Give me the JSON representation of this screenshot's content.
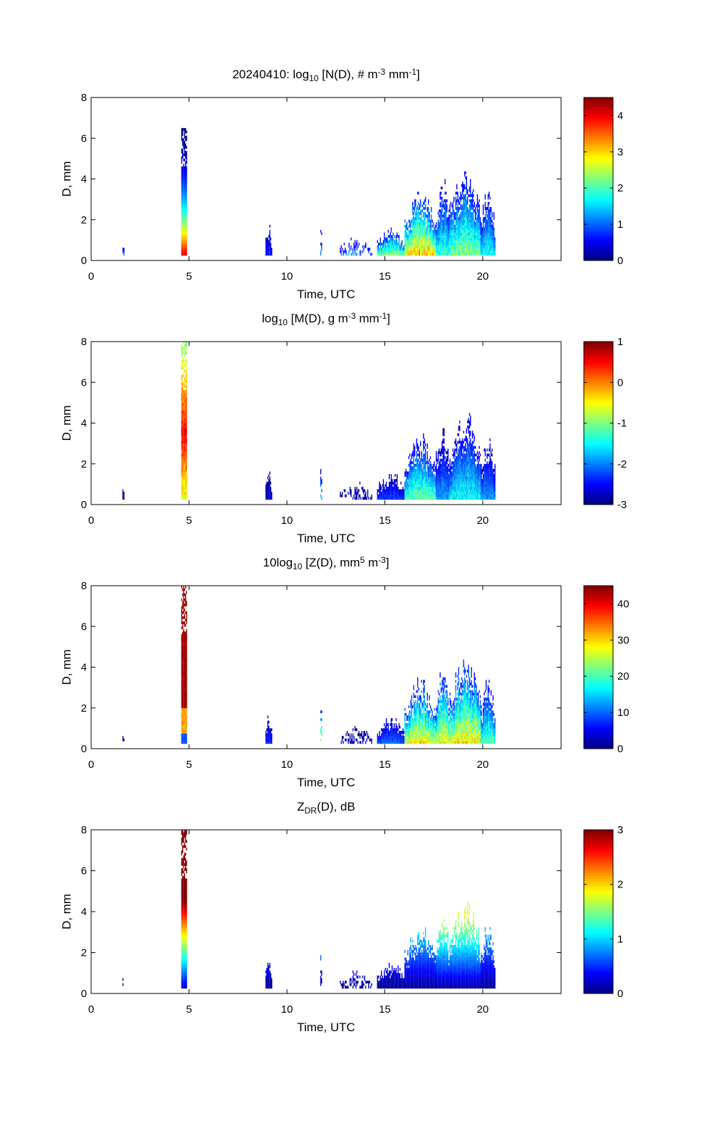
{
  "figure": {
    "date": "20240410"
  },
  "chart_data": [
    {
      "type": "heatmap",
      "id": "nd",
      "title_parts": [
        {
          "t": "20240410: log"
        },
        {
          "t": "10",
          "sub": true
        },
        {
          "t": " [N(D), # m"
        },
        {
          "t": "-3",
          "sup": true
        },
        {
          "t": " mm"
        },
        {
          "t": "-1",
          "sup": true
        },
        {
          "t": "]"
        }
      ],
      "xlabel": "Time, UTC",
      "ylabel": "D, mm",
      "xlim": [
        0,
        24
      ],
      "ylim": [
        0,
        8
      ],
      "xticks": [
        0,
        5,
        10,
        15,
        20
      ],
      "yticks": [
        0,
        2,
        4,
        6,
        8
      ],
      "colorbar": {
        "clim": [
          0,
          4.5
        ],
        "ticks": [
          0,
          1,
          2,
          3,
          4
        ],
        "colormap": "jet"
      },
      "events": [
        {
          "t0": 1.6,
          "t1": 1.65,
          "dmax": 1.1,
          "peak": 1.5,
          "sparse": true
        },
        {
          "t0": 4.6,
          "t1": 4.85,
          "dmax": 6.5,
          "peak": 4.4,
          "tail": 8.0,
          "shape": "fall-narrow"
        },
        {
          "t0": 8.9,
          "t1": 9.2,
          "dmax": 1.5,
          "peak": 1.0
        },
        {
          "t0": 11.7,
          "t1": 11.75,
          "dmax": 2.9,
          "peak": 1.5,
          "sparse": true
        },
        {
          "t0": 12.7,
          "t1": 14.3,
          "dmax": 0.9,
          "peak": 1.8,
          "sparse": true
        },
        {
          "t0": 14.6,
          "t1": 16.0,
          "dmax": 1.3,
          "peak": 3.2
        },
        {
          "t0": 16.0,
          "t1": 17.6,
          "dmax": 2.9,
          "peak": 3.8
        },
        {
          "t0": 17.6,
          "t1": 18.3,
          "dmax": 3.5,
          "peak": 2.4
        },
        {
          "t0": 18.3,
          "t1": 19.9,
          "dmax": 3.9,
          "peak": 2.8
        },
        {
          "t0": 19.9,
          "t1": 20.6,
          "dmax": 3.0,
          "peak": 2.2
        }
      ]
    },
    {
      "type": "heatmap",
      "id": "md",
      "title_parts": [
        {
          "t": "log"
        },
        {
          "t": "10",
          "sub": true
        },
        {
          "t": " [M(D), g m"
        },
        {
          "t": "-3",
          "sup": true
        },
        {
          "t": " mm"
        },
        {
          "t": "-1",
          "sup": true
        },
        {
          "t": "]"
        }
      ],
      "xlabel": "Time, UTC",
      "ylabel": "D, mm",
      "xlim": [
        0,
        24
      ],
      "ylim": [
        0,
        8
      ],
      "xticks": [
        0,
        5,
        10,
        15,
        20
      ],
      "yticks": [
        0,
        2,
        4,
        6,
        8
      ],
      "colorbar": {
        "clim": [
          -3,
          1
        ],
        "ticks": [
          -3,
          -2,
          -1,
          0,
          1
        ],
        "colormap": "jet"
      },
      "events": [
        {
          "t0": 1.6,
          "t1": 1.65,
          "dmax": 1.1,
          "peak": -2.8,
          "sparse": true
        },
        {
          "t0": 4.6,
          "t1": 4.85,
          "dmax": 7.9,
          "peak": 0.8,
          "shape": "rise-mid"
        },
        {
          "t0": 8.9,
          "t1": 9.2,
          "dmax": 1.5,
          "peak": -2.6
        },
        {
          "t0": 11.7,
          "t1": 11.75,
          "dmax": 2.9,
          "peak": -1.3,
          "sparse": true
        },
        {
          "t0": 12.7,
          "t1": 14.3,
          "dmax": 0.9,
          "peak": -2.6,
          "sparse": true
        },
        {
          "t0": 14.6,
          "t1": 16.0,
          "dmax": 1.3,
          "peak": -2.0
        },
        {
          "t0": 16.0,
          "t1": 17.6,
          "dmax": 2.9,
          "peak": -0.6
        },
        {
          "t0": 17.6,
          "t1": 18.3,
          "dmax": 3.5,
          "peak": -1.6
        },
        {
          "t0": 18.3,
          "t1": 19.9,
          "dmax": 3.9,
          "peak": -1.1
        },
        {
          "t0": 19.9,
          "t1": 20.6,
          "dmax": 3.0,
          "peak": -1.6
        }
      ]
    },
    {
      "type": "heatmap",
      "id": "zd",
      "title_parts": [
        {
          "t": "10log"
        },
        {
          "t": "10",
          "sub": true
        },
        {
          "t": " [Z(D),  mm"
        },
        {
          "t": "5",
          "sup": true
        },
        {
          "t": " m"
        },
        {
          "t": "-3",
          "sup": true
        },
        {
          "t": "]"
        }
      ],
      "xlabel": "Time, UTC",
      "ylabel": "D, mm",
      "xlim": [
        0,
        24
      ],
      "ylim": [
        0,
        8
      ],
      "xticks": [
        0,
        5,
        10,
        15,
        20
      ],
      "yticks": [
        0,
        2,
        4,
        6,
        8
      ],
      "colorbar": {
        "clim": [
          0,
          45
        ],
        "ticks": [
          0,
          10,
          20,
          30,
          40
        ],
        "colormap": "jet"
      },
      "events": [
        {
          "t0": 1.6,
          "t1": 1.65,
          "dmax": 1.1,
          "peak": 2,
          "sparse": true
        },
        {
          "t0": 4.6,
          "t1": 4.85,
          "dmax": 7.9,
          "peak": 45,
          "shape": "rise-strong"
        },
        {
          "t0": 8.9,
          "t1": 9.2,
          "dmax": 1.5,
          "peak": 10
        },
        {
          "t0": 11.7,
          "t1": 11.75,
          "dmax": 2.9,
          "peak": 32,
          "sparse": true
        },
        {
          "t0": 12.7,
          "t1": 14.3,
          "dmax": 0.9,
          "peak": 4,
          "sparse": true
        },
        {
          "t0": 14.6,
          "t1": 16.0,
          "dmax": 1.3,
          "peak": 14
        },
        {
          "t0": 16.0,
          "t1": 17.6,
          "dmax": 2.9,
          "peak": 36
        },
        {
          "t0": 17.6,
          "t1": 18.3,
          "dmax": 3.5,
          "peak": 34
        },
        {
          "t0": 18.3,
          "t1": 19.9,
          "dmax": 3.9,
          "peak": 36
        },
        {
          "t0": 19.9,
          "t1": 20.6,
          "dmax": 3.0,
          "peak": 26
        }
      ]
    },
    {
      "type": "heatmap",
      "id": "zdr",
      "title_parts": [
        {
          "t": "Z"
        },
        {
          "t": "DR",
          "sub": true
        },
        {
          "t": "(D), dB"
        }
      ],
      "xlabel": "Time, UTC",
      "ylabel": "D, mm",
      "xlim": [
        0,
        24
      ],
      "ylim": [
        0,
        8
      ],
      "xticks": [
        0,
        5,
        10,
        15,
        20
      ],
      "yticks": [
        0,
        2,
        4,
        6,
        8
      ],
      "colorbar": {
        "clim": [
          0,
          3
        ],
        "ticks": [
          0,
          1,
          2,
          3
        ],
        "colormap": "jet"
      },
      "events": [
        {
          "t0": 1.6,
          "t1": 1.65,
          "dmax": 1.1,
          "peak": 0.2,
          "sparse": true
        },
        {
          "t0": 4.6,
          "t1": 4.85,
          "dmax": 7.9,
          "peak": 3.0,
          "shape": "zdr"
        },
        {
          "t0": 8.9,
          "t1": 9.2,
          "dmax": 1.5,
          "peak": 0.4,
          "shape": "zdr"
        },
        {
          "t0": 11.7,
          "t1": 11.75,
          "dmax": 2.9,
          "peak": 1.1,
          "sparse": true,
          "shape": "zdr"
        },
        {
          "t0": 12.7,
          "t1": 14.3,
          "dmax": 0.9,
          "peak": 0.3,
          "sparse": true,
          "shape": "zdr"
        },
        {
          "t0": 14.6,
          "t1": 16.0,
          "dmax": 1.3,
          "peak": 0.4,
          "shape": "zdr"
        },
        {
          "t0": 16.0,
          "t1": 17.6,
          "dmax": 2.9,
          "peak": 1.1,
          "shape": "zdr"
        },
        {
          "t0": 17.6,
          "t1": 18.3,
          "dmax": 3.5,
          "peak": 1.8,
          "shape": "zdr"
        },
        {
          "t0": 18.3,
          "t1": 19.9,
          "dmax": 3.9,
          "peak": 2.0,
          "shape": "zdr"
        },
        {
          "t0": 19.9,
          "t1": 20.6,
          "dmax": 3.0,
          "peak": 1.0,
          "shape": "zdr"
        }
      ]
    }
  ]
}
